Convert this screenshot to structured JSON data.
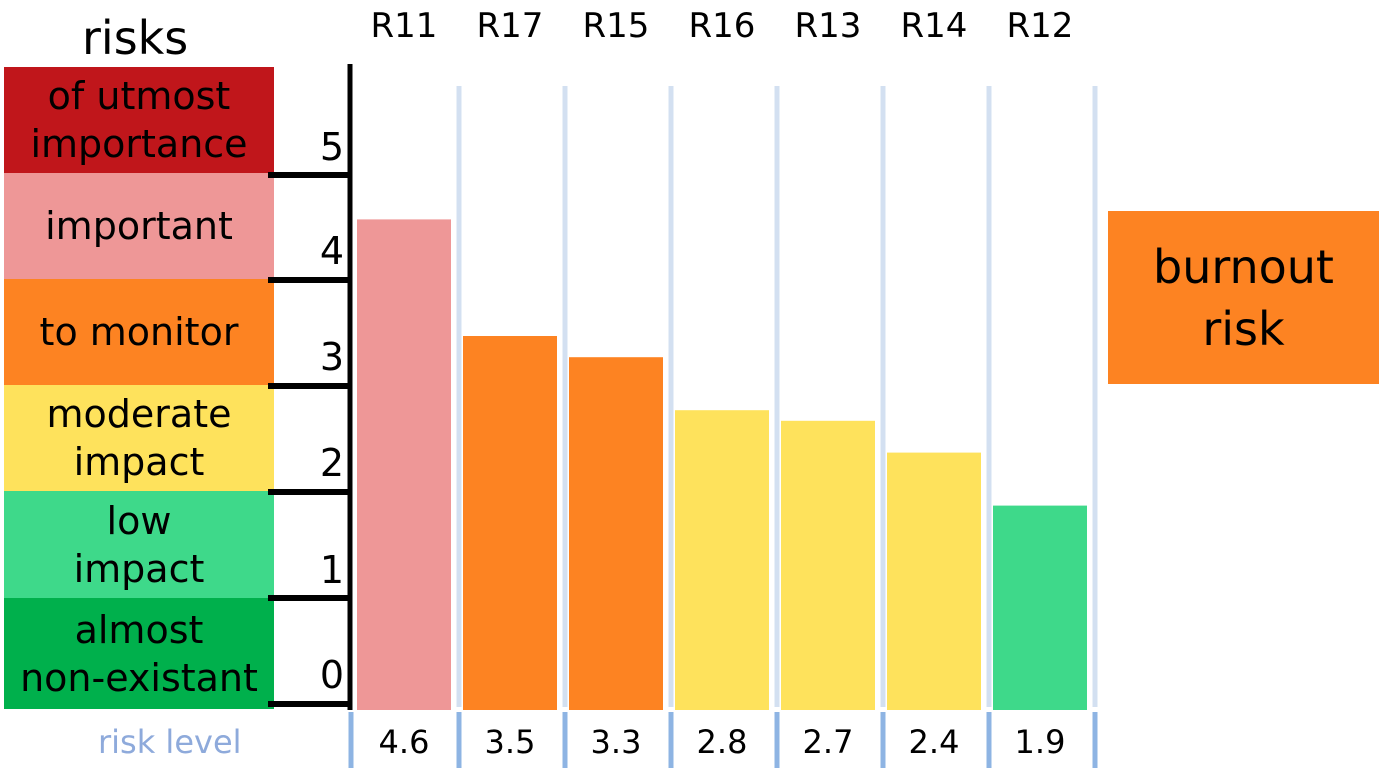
{
  "legend_title": "risks",
  "panel_label": "burnout\nrisk",
  "panel_color": "#fd8322",
  "footer_label": "risk level",
  "chart_data": {
    "type": "bar",
    "categories": [
      "R11",
      "R17",
      "R15",
      "R16",
      "R13",
      "R14",
      "R12"
    ],
    "values": [
      4.6,
      3.5,
      3.3,
      2.8,
      2.7,
      2.4,
      1.9
    ],
    "value_labels": [
      "4.6",
      "3.5",
      "3.3",
      "2.8",
      "2.7",
      "2.4",
      "1.9"
    ],
    "bar_colors": [
      "#ee9797",
      "#fd8322",
      "#fd8322",
      "#fee25c",
      "#fee25c",
      "#fee25c",
      "#3ed98a"
    ],
    "ylim": [
      0,
      5
    ],
    "y_ticks": [
      "0",
      "1",
      "2",
      "3",
      "4",
      "5"
    ],
    "grid": true,
    "levels": [
      {
        "label": "of utmost\nimportance",
        "color": "#c0161b"
      },
      {
        "label": "important",
        "color": "#ee9797"
      },
      {
        "label": "to monitor",
        "color": "#fd8322"
      },
      {
        "label": "moderate\nimpact",
        "color": "#fee25c"
      },
      {
        "label": "low\nimpact",
        "color": "#3ed98a"
      },
      {
        "label": "almost\nnon-existant",
        "color": "#00b04c"
      }
    ]
  }
}
